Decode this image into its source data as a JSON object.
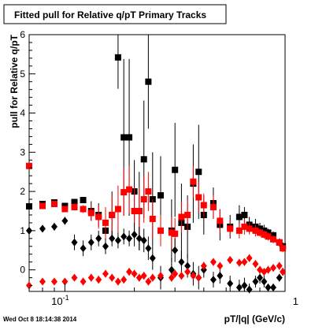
{
  "title_box": {
    "text": "Fitted pull for Relative q/pT  Primary Tracks"
  },
  "footer": {
    "timestamp": "Wed Oct  8 18:14:38 2014"
  },
  "chart_data": {
    "type": "scatter",
    "xscale": "log",
    "xlim": [
      0.07,
      0.9
    ],
    "ylim": [
      -0.55,
      6
    ],
    "xlabel": "pT/|q| (GeV/c)",
    "ylabel": "pull for Relative q/pT",
    "xticks": [
      {
        "value": 0.1,
        "label": "10^-1"
      },
      {
        "value": 1,
        "label": "1"
      }
    ],
    "yticks": [
      0,
      1,
      2,
      3,
      4,
      5,
      6
    ],
    "grid": false,
    "legend": "none",
    "series": [
      {
        "color": "#000000",
        "marker": "square",
        "points": [
          [
            0.07,
            1.62,
            0.02
          ],
          [
            0.08,
            1.68,
            0.04
          ],
          [
            0.09,
            1.72,
            0.06
          ],
          [
            0.1,
            1.63,
            0.05
          ],
          [
            0.11,
            1.73,
            0.08
          ],
          [
            0.12,
            1.78,
            0.08
          ],
          [
            0.13,
            1.5,
            0.25
          ],
          [
            0.14,
            1.4,
            0.3
          ],
          [
            0.15,
            1.0,
            0.4
          ],
          [
            0.16,
            1.4,
            0.6
          ],
          [
            0.17,
            5.42,
            0.8
          ],
          [
            0.18,
            3.38,
            2.0
          ],
          [
            0.19,
            3.38,
            2.0
          ],
          [
            0.2,
            2.0,
            0.8
          ],
          [
            0.21,
            1.5,
            1.0
          ],
          [
            0.22,
            2.82,
            1.5
          ],
          [
            0.23,
            4.8,
            1.2
          ],
          [
            0.24,
            1.8,
            1.2
          ],
          [
            0.26,
            1.9,
            1.0
          ],
          [
            0.29,
            1.0,
            0.8
          ],
          [
            0.3,
            2.55,
            1.2
          ],
          [
            0.32,
            1.2,
            1.0
          ],
          [
            0.34,
            1.1,
            0.8
          ],
          [
            0.36,
            2.2,
            1.0
          ],
          [
            0.38,
            2.5,
            1.2
          ],
          [
            0.4,
            1.4,
            0.5
          ],
          [
            0.44,
            1.7,
            0.4
          ],
          [
            0.47,
            1.15,
            0.4
          ],
          [
            0.52,
            1.1,
            0.3
          ],
          [
            0.57,
            1.35,
            0.3
          ],
          [
            0.6,
            1.4,
            0.2
          ],
          [
            0.63,
            1.15,
            0.2
          ],
          [
            0.67,
            1.1,
            0.2
          ],
          [
            0.7,
            1.05,
            0.15
          ],
          [
            0.73,
            1.0,
            0.15
          ],
          [
            0.76,
            0.95,
            0.1
          ],
          [
            0.8,
            0.88,
            0.1
          ],
          [
            0.85,
            0.7,
            0.1
          ],
          [
            0.88,
            0.6,
            0.1
          ]
        ]
      },
      {
        "color": "#ff0000",
        "marker": "square",
        "points": [
          [
            0.07,
            2.65,
            0.05
          ],
          [
            0.08,
            1.63,
            0.05
          ],
          [
            0.09,
            1.68,
            0.05
          ],
          [
            0.1,
            1.55,
            0.05
          ],
          [
            0.11,
            1.6,
            0.05
          ],
          [
            0.12,
            1.55,
            0.1
          ],
          [
            0.13,
            1.45,
            0.2
          ],
          [
            0.14,
            1.35,
            0.3
          ],
          [
            0.15,
            1.2,
            0.4
          ],
          [
            0.16,
            1.4,
            0.5
          ],
          [
            0.17,
            1.55,
            0.6
          ],
          [
            0.18,
            1.98,
            0.6
          ],
          [
            0.19,
            2.05,
            0.6
          ],
          [
            0.2,
            1.5,
            0.6
          ],
          [
            0.21,
            1.5,
            0.6
          ],
          [
            0.22,
            1.8,
            0.6
          ],
          [
            0.23,
            2.0,
            0.5
          ],
          [
            0.24,
            1.3,
            0.5
          ],
          [
            0.26,
            1.0,
            0.4
          ],
          [
            0.29,
            0.95,
            0.4
          ],
          [
            0.3,
            0.92,
            0.4
          ],
          [
            0.32,
            1.35,
            0.4
          ],
          [
            0.34,
            1.4,
            0.4
          ],
          [
            0.36,
            2.25,
            0.4
          ],
          [
            0.38,
            1.85,
            0.4
          ],
          [
            0.4,
            1.65,
            0.3
          ],
          [
            0.44,
            1.6,
            0.3
          ],
          [
            0.47,
            1.25,
            0.3
          ],
          [
            0.52,
            1.05,
            0.2
          ],
          [
            0.57,
            1.0,
            0.2
          ],
          [
            0.6,
            1.1,
            0.2
          ],
          [
            0.63,
            1.05,
            0.15
          ],
          [
            0.67,
            1.0,
            0.15
          ],
          [
            0.7,
            0.95,
            0.1
          ],
          [
            0.73,
            0.9,
            0.1
          ],
          [
            0.76,
            0.85,
            0.1
          ],
          [
            0.8,
            0.78,
            0.1
          ],
          [
            0.85,
            0.7,
            0.1
          ],
          [
            0.88,
            0.55,
            0.1
          ]
        ]
      },
      {
        "color": "#000000",
        "marker": "diamond",
        "points": [
          [
            0.07,
            1.0,
            0.05
          ],
          [
            0.08,
            1.05,
            0.05
          ],
          [
            0.09,
            1.1,
            0.1
          ],
          [
            0.1,
            1.25,
            0.1
          ],
          [
            0.11,
            0.7,
            0.2
          ],
          [
            0.12,
            0.55,
            0.2
          ],
          [
            0.13,
            0.7,
            0.2
          ],
          [
            0.14,
            0.8,
            0.2
          ],
          [
            0.15,
            0.6,
            0.2
          ],
          [
            0.16,
            0.8,
            0.2
          ],
          [
            0.17,
            0.75,
            0.2
          ],
          [
            0.18,
            0.85,
            0.2
          ],
          [
            0.19,
            0.8,
            0.2
          ],
          [
            0.2,
            0.9,
            0.3
          ],
          [
            0.21,
            0.8,
            0.3
          ],
          [
            0.22,
            0.75,
            0.3
          ],
          [
            0.23,
            0.55,
            0.3
          ],
          [
            0.24,
            0.3,
            0.3
          ],
          [
            0.26,
            -0.2,
            0.3
          ],
          [
            0.29,
            0.0,
            0.3
          ],
          [
            0.3,
            0.5,
            0.3
          ],
          [
            0.32,
            0.2,
            0.3
          ],
          [
            0.34,
            0.1,
            0.3
          ],
          [
            0.36,
            -0.1,
            0.3
          ],
          [
            0.38,
            -0.2,
            0.3
          ],
          [
            0.4,
            0.0,
            0.2
          ],
          [
            0.44,
            -0.25,
            0.2
          ],
          [
            0.47,
            -0.15,
            0.2
          ],
          [
            0.52,
            -0.35,
            0.2
          ],
          [
            0.57,
            -0.45,
            0.2
          ],
          [
            0.6,
            -0.4,
            0.2
          ],
          [
            0.63,
            -0.5,
            0.15
          ],
          [
            0.67,
            -0.3,
            0.15
          ],
          [
            0.7,
            -0.2,
            0.15
          ],
          [
            0.73,
            -0.3,
            0.15
          ],
          [
            0.76,
            -0.45,
            0.1
          ],
          [
            0.8,
            -0.45,
            0.1
          ],
          [
            0.85,
            -0.2,
            0.1
          ],
          [
            0.88,
            -0.05,
            0.1
          ]
        ]
      },
      {
        "color": "#ff0000",
        "marker": "diamond",
        "points": [
          [
            0.07,
            -0.4,
            0.05
          ],
          [
            0.08,
            -0.3,
            0.05
          ],
          [
            0.09,
            -0.3,
            0.05
          ],
          [
            0.1,
            -0.3,
            0.05
          ],
          [
            0.11,
            -0.2,
            0.05
          ],
          [
            0.12,
            -0.3,
            0.1
          ],
          [
            0.13,
            -0.2,
            0.1
          ],
          [
            0.14,
            -0.25,
            0.1
          ],
          [
            0.15,
            -0.1,
            0.1
          ],
          [
            0.16,
            -0.2,
            0.1
          ],
          [
            0.17,
            -0.3,
            0.1
          ],
          [
            0.18,
            -0.25,
            0.1
          ],
          [
            0.19,
            -0.05,
            0.1
          ],
          [
            0.2,
            -0.1,
            0.1
          ],
          [
            0.21,
            -0.2,
            0.1
          ],
          [
            0.22,
            -0.15,
            0.1
          ],
          [
            0.23,
            -0.3,
            0.1
          ],
          [
            0.24,
            -0.2,
            0.1
          ],
          [
            0.26,
            -0.15,
            0.1
          ],
          [
            0.29,
            -0.2,
            0.1
          ],
          [
            0.3,
            -0.1,
            0.1
          ],
          [
            0.32,
            -0.15,
            0.1
          ],
          [
            0.34,
            -0.05,
            0.1
          ],
          [
            0.36,
            -0.15,
            0.1
          ],
          [
            0.38,
            -0.2,
            0.1
          ],
          [
            0.4,
            0.1,
            0.1
          ],
          [
            0.44,
            0.2,
            0.1
          ],
          [
            0.47,
            0.1,
            0.1
          ],
          [
            0.52,
            0.25,
            0.1
          ],
          [
            0.57,
            0.18,
            0.1
          ],
          [
            0.6,
            0.2,
            0.1
          ],
          [
            0.63,
            0.3,
            0.1
          ],
          [
            0.67,
            0.15,
            0.1
          ],
          [
            0.7,
            0.0,
            0.1
          ],
          [
            0.73,
            -0.05,
            0.1
          ],
          [
            0.76,
            0.0,
            0.1
          ],
          [
            0.8,
            0.05,
            0.1
          ],
          [
            0.85,
            0.1,
            0.1
          ],
          [
            0.88,
            -0.05,
            0.1
          ]
        ]
      }
    ]
  }
}
